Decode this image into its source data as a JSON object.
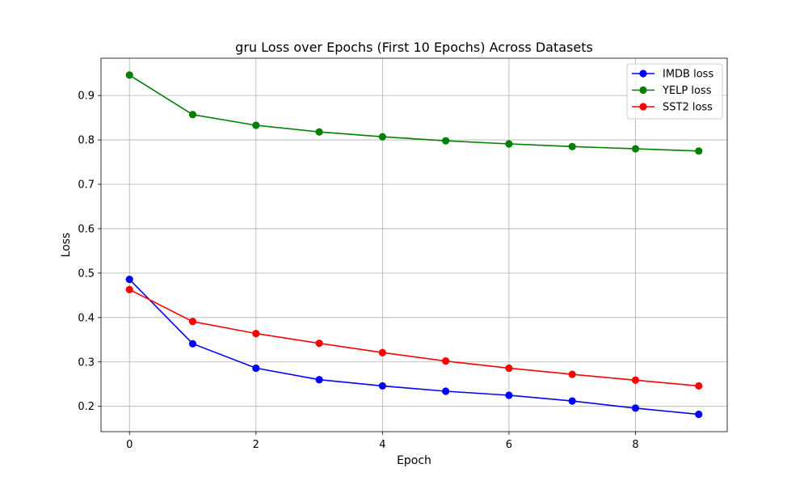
{
  "chart_data": {
    "type": "line",
    "title": "gru Loss over Epochs (First 10 Epochs) Across Datasets",
    "xlabel": "Epoch",
    "ylabel": "Loss",
    "x": [
      0,
      1,
      2,
      3,
      4,
      5,
      6,
      7,
      8,
      9
    ],
    "xlim": [
      -0.45,
      9.45
    ],
    "ylim": [
      0.143,
      0.984
    ],
    "xticks": [
      0,
      2,
      4,
      6,
      8
    ],
    "yticks": [
      0.2,
      0.3,
      0.4,
      0.5,
      0.6,
      0.7,
      0.8,
      0.9
    ],
    "xtick_labels": [
      "0",
      "2",
      "4",
      "6",
      "8"
    ],
    "ytick_labels": [
      "0.2",
      "0.3",
      "0.4",
      "0.5",
      "0.6",
      "0.7",
      "0.8",
      "0.9"
    ],
    "grid": true,
    "legend_position": "top-right",
    "series": [
      {
        "name": "IMDB loss",
        "color": "#0000ff",
        "marker": "circle",
        "values": [
          0.486,
          0.341,
          0.286,
          0.26,
          0.246,
          0.234,
          0.225,
          0.212,
          0.196,
          0.182
        ]
      },
      {
        "name": "YELP loss",
        "color": "#008000",
        "marker": "circle",
        "values": [
          0.946,
          0.857,
          0.833,
          0.818,
          0.807,
          0.798,
          0.791,
          0.785,
          0.78,
          0.775
        ]
      },
      {
        "name": "SST2 loss",
        "color": "#ff0000",
        "marker": "circle",
        "values": [
          0.463,
          0.391,
          0.364,
          0.342,
          0.321,
          0.302,
          0.286,
          0.272,
          0.259,
          0.246
        ]
      }
    ]
  }
}
